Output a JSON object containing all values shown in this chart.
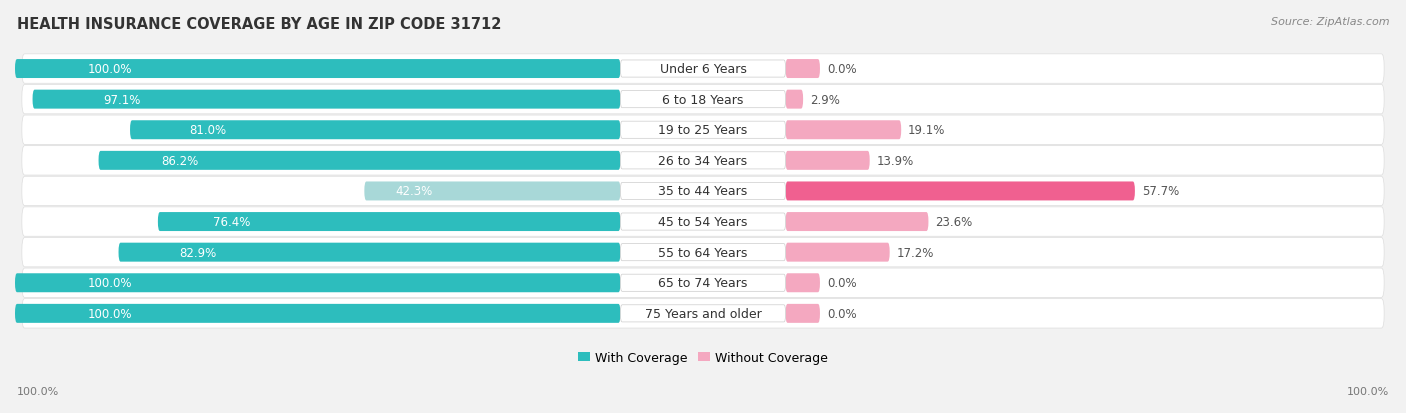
{
  "title": "HEALTH INSURANCE COVERAGE BY AGE IN ZIP CODE 31712",
  "source": "Source: ZipAtlas.com",
  "categories": [
    "Under 6 Years",
    "6 to 18 Years",
    "19 to 25 Years",
    "26 to 34 Years",
    "35 to 44 Years",
    "45 to 54 Years",
    "55 to 64 Years",
    "65 to 74 Years",
    "75 Years and older"
  ],
  "with_coverage": [
    100.0,
    97.1,
    81.0,
    86.2,
    42.3,
    76.4,
    82.9,
    100.0,
    100.0
  ],
  "without_coverage": [
    0.0,
    2.9,
    19.1,
    13.9,
    57.7,
    23.6,
    17.2,
    0.0,
    0.0
  ],
  "color_with_dark": "#2DBDBD",
  "color_with_light": "#A8D8D8",
  "color_without_dark": "#F06090",
  "color_without_light": "#F4A8C0",
  "row_bg": "#EBEBEB",
  "fig_bg": "#F2F2F2",
  "title_fontsize": 10.5,
  "label_fontsize": 9,
  "pct_fontsize": 8.5,
  "tick_fontsize": 8,
  "source_fontsize": 8
}
